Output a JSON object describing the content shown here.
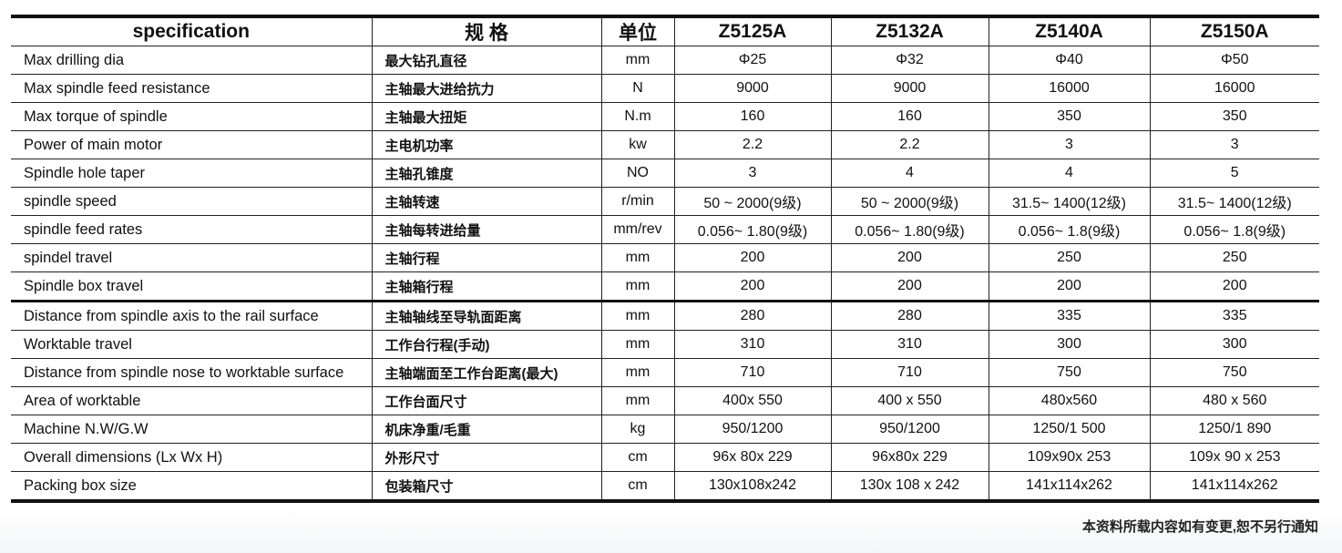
{
  "table": {
    "headers": [
      "specification",
      "规 格",
      "单位",
      "Z5125A",
      "Z5132A",
      "Z5140A",
      "Z5150A"
    ],
    "rows": [
      [
        "Max drilling dia",
        "最大钻孔直径",
        "mm",
        "Φ25",
        "Φ32",
        "Φ40",
        "Φ50"
      ],
      [
        "Max spindle feed resistance",
        "主轴最大进给抗力",
        "N",
        "9000",
        "9000",
        "16000",
        "16000"
      ],
      [
        "Max torque of spindle",
        "主轴最大扭矩",
        "N.m",
        "160",
        "160",
        "350",
        "350"
      ],
      [
        "Power of main motor",
        "主电机功率",
        "kw",
        "2.2",
        "2.2",
        "3",
        "3"
      ],
      [
        "Spindle hole taper",
        "主轴孔锥度",
        "NO",
        "3",
        "4",
        "4",
        "5"
      ],
      [
        "spindle speed",
        "主轴转速",
        "r/min",
        "50 ~ 2000(9级)",
        "50 ~ 2000(9级)",
        "31.5~ 1400(12级)",
        "31.5~ 1400(12级)"
      ],
      [
        "spindle feed rates",
        "主轴每转进给量",
        "mm/rev",
        "0.056~ 1.80(9级)",
        "0.056~ 1.80(9级)",
        "0.056~ 1.8(9级)",
        "0.056~ 1.8(9级)"
      ],
      [
        "spindel travel",
        "主轴行程",
        "mm",
        "200",
        "200",
        "250",
        "250"
      ],
      [
        "Spindle box travel",
        "主轴箱行程",
        "mm",
        "200",
        "200",
        "200",
        "200"
      ],
      [
        "Distance from spindle axis to the rail surface",
        "主轴轴线至导轨面距离",
        "mm",
        "280",
        "280",
        "335",
        "335"
      ],
      [
        "Worktable travel",
        "工作台行程(手动)",
        "mm",
        "310",
        "310",
        "300",
        "300"
      ],
      [
        "Distance from spindle nose to worktable surface",
        "主轴端面至工作台距离(最大)",
        "mm",
        "710",
        "710",
        "750",
        "750"
      ],
      [
        "Area of worktable",
        "工作台面尺寸",
        "mm",
        "400x 550",
        "400 x 550",
        "480x560",
        "480 x 560"
      ],
      [
        "Machine N.W/G.W",
        "机床净重/毛重",
        "kg",
        "950/1200",
        "950/1200",
        "1250/1 500",
        "1250/1 890"
      ],
      [
        "Overall dimensions (Lx Wx H)",
        "外形尺寸",
        "cm",
        "96x 80x 229",
        "96x80x 229",
        "109x90x 253",
        "109x 90 x 253"
      ],
      [
        "Packing box size",
        "包装箱尺寸",
        "cm",
        "130x108x242",
        "130x 108 x 242",
        "141x114x262",
        "141x114x262"
      ]
    ]
  },
  "footnote": "本资料所载内容如有变更,恕不另行通知"
}
